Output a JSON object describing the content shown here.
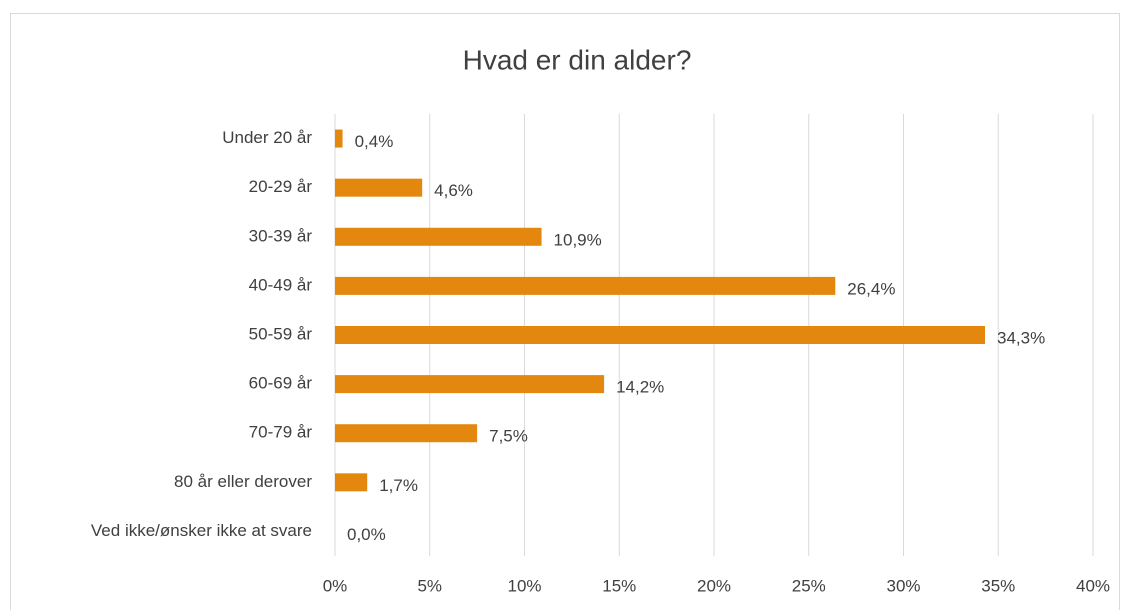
{
  "chart_data": {
    "type": "bar",
    "orientation": "horizontal",
    "title": "Hvad er din alder?",
    "categories": [
      "Under 20 år",
      "20-29 år",
      "30-39 år",
      "40-49 år",
      "50-59 år",
      "60-69 år",
      "70-79 år",
      "80 år eller derover",
      "Ved ikke/ønsker ikke at svare"
    ],
    "values": [
      0.4,
      4.6,
      10.9,
      26.4,
      34.3,
      14.2,
      7.5,
      1.7,
      0.0
    ],
    "value_labels": [
      "0,4%",
      "4,6%",
      "10,9%",
      "26,4%",
      "34,3%",
      "14,2%",
      "7,5%",
      "1,7%",
      "0,0%"
    ],
    "color": "#e3870e",
    "xlim": [
      0,
      40
    ],
    "xticks": [
      {
        "value": 0,
        "label": "0%"
      },
      {
        "value": 5,
        "label": "5%"
      },
      {
        "value": 10,
        "label": "10%"
      },
      {
        "value": 15,
        "label": "15%"
      },
      {
        "value": 20,
        "label": "20%"
      },
      {
        "value": 25,
        "label": "25%"
      },
      {
        "value": 30,
        "label": "30%"
      },
      {
        "value": 35,
        "label": "35%"
      },
      {
        "value": 40,
        "label": "40%"
      }
    ],
    "grid": true
  }
}
